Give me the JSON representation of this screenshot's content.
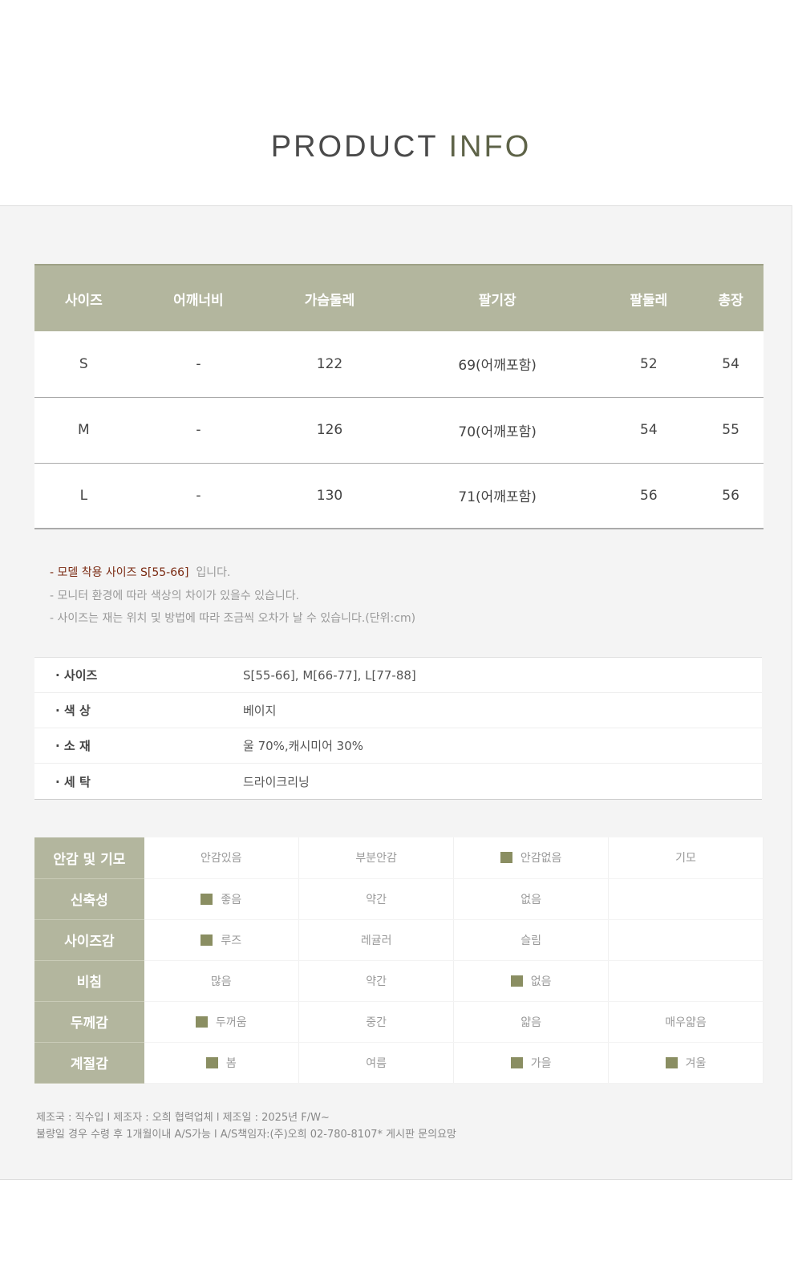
{
  "title": {
    "part1": "PRODUCT",
    "part2": "INFO"
  },
  "size_table": {
    "headers": [
      "사이즈",
      "어깨너비",
      "가슴둘레",
      "팔기장",
      "팔둘레",
      "총장"
    ],
    "rows": [
      [
        "S",
        "-",
        "122",
        "69(어깨포함)",
        "52",
        "54"
      ],
      [
        "M",
        "-",
        "126",
        "70(어깨포함)",
        "54",
        "55"
      ],
      [
        "L",
        "-",
        "130",
        "71(어깨포함)",
        "56",
        "56"
      ]
    ]
  },
  "notes": {
    "model_prefix": "- 모델 착용 사이즈  S[55-66]",
    "model_suffix": "입니다.",
    "line2": "- 모니터 환경에 따라 색상의 차이가 있을수 있습니다.",
    "line3": "- 사이즈는 재는 위치 및 방법에 따라 조금씩 오차가 날 수 있습니다.(단위:cm)"
  },
  "info": [
    {
      "label": "· 사이즈",
      "value": "S[55-66], M[66-77], L[77-88]"
    },
    {
      "label": "· 색  상",
      "value": "베이지"
    },
    {
      "label": "· 소  재",
      "value": "울 70%,캐시미어 30%"
    },
    {
      "label": "· 세  탁",
      "value": "드라이크리닝"
    }
  ],
  "features": {
    "mark_color": "#8a8e62",
    "rows": [
      {
        "label": "안감 및 기모",
        "options": [
          {
            "text": "안감있음",
            "checked": false
          },
          {
            "text": "부분안감",
            "checked": false
          },
          {
            "text": "안감없음",
            "checked": true
          },
          {
            "text": "기모",
            "checked": false
          }
        ]
      },
      {
        "label": "신축성",
        "options": [
          {
            "text": "좋음",
            "checked": true
          },
          {
            "text": "약간",
            "checked": false
          },
          {
            "text": "없음",
            "checked": false
          },
          {
            "text": "",
            "checked": false
          }
        ]
      },
      {
        "label": "사이즈감",
        "options": [
          {
            "text": "루즈",
            "checked": true
          },
          {
            "text": "레귤러",
            "checked": false
          },
          {
            "text": "슬림",
            "checked": false
          },
          {
            "text": "",
            "checked": false
          }
        ]
      },
      {
        "label": "비침",
        "options": [
          {
            "text": "많음",
            "checked": false
          },
          {
            "text": "약간",
            "checked": false
          },
          {
            "text": "없음",
            "checked": true
          },
          {
            "text": "",
            "checked": false
          }
        ]
      },
      {
        "label": "두께감",
        "options": [
          {
            "text": "두꺼움",
            "checked": true
          },
          {
            "text": "중간",
            "checked": false
          },
          {
            "text": "얇음",
            "checked": false
          },
          {
            "text": "매우얇음",
            "checked": false
          }
        ]
      },
      {
        "label": "계절감",
        "options": [
          {
            "text": "봄",
            "checked": true
          },
          {
            "text": "여름",
            "checked": false
          },
          {
            "text": "가을",
            "checked": true
          },
          {
            "text": "겨울",
            "checked": true
          }
        ]
      }
    ]
  },
  "footer": {
    "line1": "제조국 : 직수입 l 제조자 : 오희 협력업체 l 제조일 : 2025년 F/W~",
    "line2": "불량일 경우 수령 후 1개월이내 A/S가능 l A/S책임자:(주)오희 02-780-8107* 게시판 문의요망"
  },
  "colors": {
    "header_bg": "#b3b69e",
    "accent_text": "#7a2a12",
    "info_title": "#5e6348"
  }
}
